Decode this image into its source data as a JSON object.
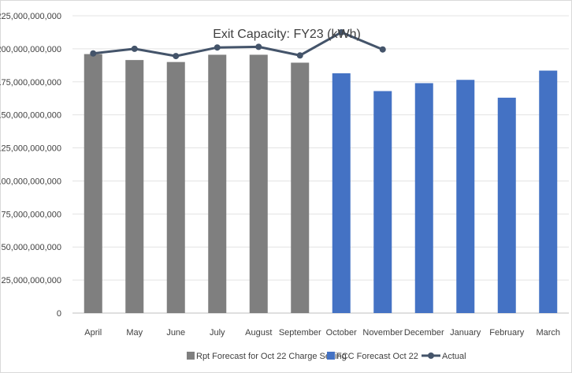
{
  "chart_data": {
    "type": "bar",
    "title": "Exit Capacity: FY23 (kWh)",
    "xlabel": "",
    "ylabel": "",
    "ylim": [
      0,
      225000000000
    ],
    "ytick_values": [
      0,
      25000000000,
      50000000000,
      75000000000,
      100000000000,
      125000000000,
      150000000000,
      175000000000,
      200000000000,
      225000000000
    ],
    "ytick_labels": [
      "0",
      "25,000,000,000",
      "50,000,000,000",
      "75,000,000,000",
      "100,000,000,000",
      "125,000,000,000",
      "150,000,000,000",
      "175,000,000,000",
      "200,000,000,000",
      "225,000,000,000"
    ],
    "categories": [
      "April",
      "May",
      "June",
      "July",
      "August",
      "September",
      "October",
      "November",
      "December",
      "January",
      "February",
      "March"
    ],
    "grid": true,
    "legend_position": "bottom",
    "series": [
      {
        "name": "Rpt Forecast for Oct 22 Charge Setting",
        "kind": "bar",
        "color": "#7f7f7f",
        "values": [
          196000000000,
          191500000000,
          190000000000,
          195500000000,
          195500000000,
          189500000000,
          null,
          null,
          null,
          null,
          null,
          null
        ]
      },
      {
        "name": "FCC Forecast Oct 22",
        "kind": "bar",
        "color": "#4472c4",
        "values": [
          null,
          null,
          null,
          null,
          null,
          null,
          181500000000,
          168000000000,
          174000000000,
          176500000000,
          163000000000,
          183500000000
        ]
      },
      {
        "name": "Actual",
        "kind": "line",
        "color": "#44546a",
        "values": [
          196500000000,
          200000000000,
          194500000000,
          201000000000,
          201500000000,
          195000000000,
          212500000000,
          199500000000,
          null,
          null,
          null,
          null
        ]
      }
    ]
  }
}
